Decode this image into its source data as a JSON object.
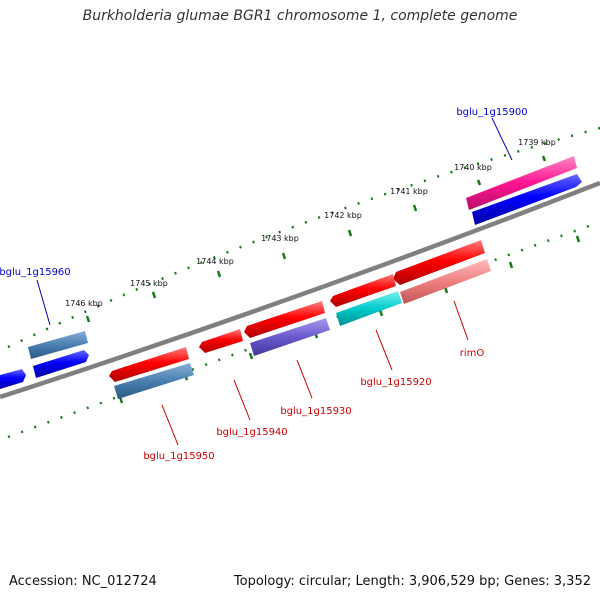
{
  "title": "Burkholderia glumae BGR1 chromosome 1, complete genome",
  "footer": {
    "accession": "Accession: NC_012724",
    "summary": "Topology: circular; Length: 3,906,529 bp; Genes: 3,352"
  },
  "ticks": [
    "1739 kbp",
    "1740 kbp",
    "1741 kbp",
    "1742 kbp",
    "1743 kbp",
    "1744 kbp",
    "1745 kbp",
    "1746 kbp"
  ],
  "gene_labels": {
    "bglu_1g15900": "bglu_1g15900",
    "bglu_1g15960": "bglu_1g15960",
    "rimO": "rimO",
    "bglu_1g15920": "bglu_1g15920",
    "bglu_1g15930": "bglu_1g15930",
    "bglu_1g15940": "bglu_1g15940",
    "bglu_1g15950": "bglu_1g15950"
  },
  "colors": {
    "forward_gene": "#ff0000",
    "reverse_gene": "#0000ff",
    "steelblue_gene": "#4a7fb0",
    "magenta_gene": "#ff3399",
    "cyan_gene": "#00cccc",
    "pink_gene": "#f08080",
    "purple_gene": "#6a5acd",
    "backbone": "#808080",
    "tick": "#1a7a1a",
    "label_blue": "#0000cc",
    "label_red": "#cc0000"
  }
}
